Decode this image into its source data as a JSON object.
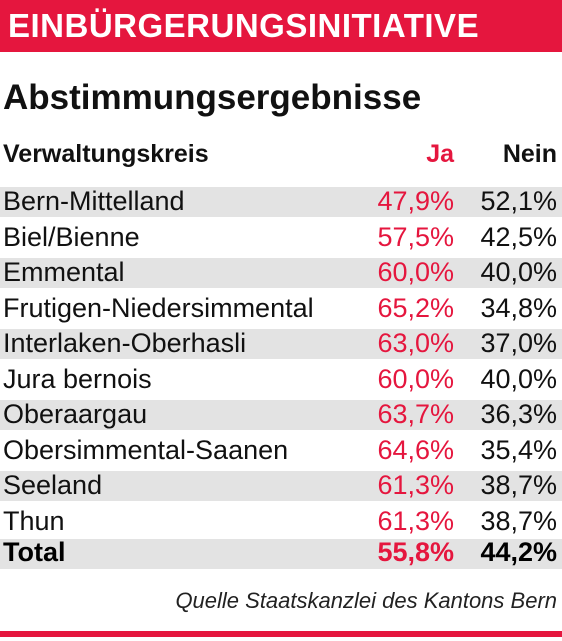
{
  "banner": {
    "title": "EINBÜRGERUNGSINITIATIVE"
  },
  "heading": "Abstimmungsergebnisse",
  "columns": {
    "district": "Verwaltungskreis",
    "yes": "Ja",
    "no": "Nein"
  },
  "rows": [
    {
      "district": "Bern-Mittelland",
      "yes": "47,9%",
      "no": "52,1%"
    },
    {
      "district": "Biel/Bienne",
      "yes": "57,5%",
      "no": "42,5%"
    },
    {
      "district": "Emmental",
      "yes": "60,0%",
      "no": "40,0%"
    },
    {
      "district": "Frutigen-Niedersimmental",
      "yes": "65,2%",
      "no": "34,8%"
    },
    {
      "district": "Interlaken-Oberhasli",
      "yes": "63,0%",
      "no": "37,0%"
    },
    {
      "district": "Jura bernois",
      "yes": "60,0%",
      "no": "40,0%"
    },
    {
      "district": "Oberaargau",
      "yes": "63,7%",
      "no": "36,3%"
    },
    {
      "district": "Obersimmental-Saanen",
      "yes": "64,6%",
      "no": "35,4%"
    },
    {
      "district": "Seeland",
      "yes": "61,3%",
      "no": "38,7%"
    },
    {
      "district": "Thun",
      "yes": "61,3%",
      "no": "38,7%"
    }
  ],
  "total": {
    "label": "Total",
    "yes": "55,8%",
    "no": "44,2%"
  },
  "source": "Quelle Staatskanzlei des Kantons Bern",
  "colors": {
    "accent": "#e5163e",
    "stripe": "#e3e3e3",
    "text": "#111111"
  }
}
